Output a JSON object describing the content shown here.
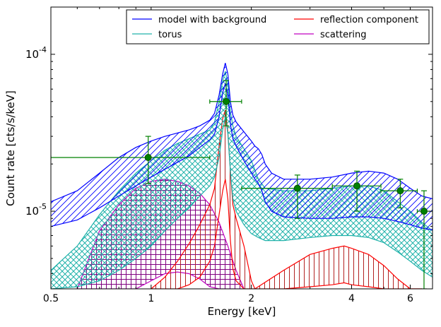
{
  "chart_data": {
    "type": "line",
    "title": "",
    "xlabel": "Energy [keV]",
    "ylabel": "Count rate [cts/s/keV]",
    "x_scale": "log",
    "y_scale": "log",
    "xlim": [
      0.5,
      7.0
    ],
    "ylim": [
      3.2e-06,
      0.0002
    ],
    "x_ticks": [
      {
        "value": 0.5,
        "label": "0.5"
      },
      {
        "value": 1,
        "label": "1"
      },
      {
        "value": 2,
        "label": "2"
      },
      {
        "value": 4,
        "label": "4"
      },
      {
        "value": 6,
        "label": "6"
      }
    ],
    "y_ticks": [
      {
        "value": 1e-05,
        "base": "10",
        "exp": "-5"
      },
      {
        "value": 0.0001,
        "base": "10",
        "exp": "-4"
      }
    ],
    "grid": false,
    "legend_position": "top-right",
    "legend": [
      {
        "label": "model with background",
        "color": "#0000ff"
      },
      {
        "label": "reflection component",
        "color": "#ff0000"
      },
      {
        "label": "torus",
        "color": "#20b2aa"
      },
      {
        "label": "scattering",
        "color": "#c000c0"
      }
    ],
    "series": [
      {
        "name": "model with background",
        "color": "#0000ff",
        "band": {
          "x": [
            0.5,
            0.6,
            0.7,
            0.8,
            0.9,
            1.0,
            1.1,
            1.2,
            1.3,
            1.4,
            1.5,
            1.55,
            1.6,
            1.64,
            1.67,
            1.7,
            1.73,
            1.76,
            1.8,
            1.9,
            2.0,
            2.05,
            2.1,
            2.15,
            2.2,
            2.3,
            2.5,
            3.0,
            3.5,
            4.0,
            4.5,
            5.0,
            5.5,
            6.0,
            6.5,
            7.0
          ],
          "upper": [
            1.15e-05,
            1.35e-05,
            1.75e-05,
            2.2e-05,
            2.55e-05,
            2.8e-05,
            3e-05,
            3.15e-05,
            3.3e-05,
            3.5e-05,
            3.8e-05,
            4.2e-05,
            5.5e-05,
            7.5e-05,
            8.8e-05,
            7.5e-05,
            5e-05,
            4.1e-05,
            3.7e-05,
            3.2e-05,
            2.8e-05,
            2.6e-05,
            2.5e-05,
            2.3e-05,
            2e-05,
            1.75e-05,
            1.6e-05,
            1.6e-05,
            1.65e-05,
            1.75e-05,
            1.8e-05,
            1.75e-05,
            1.6e-05,
            1.4e-05,
            1.25e-05,
            1.2e-05
          ],
          "lower": [
            8e-06,
            8.8e-06,
            1.05e-05,
            1.25e-05,
            1.45e-05,
            1.65e-05,
            1.85e-05,
            2.05e-05,
            2.25e-05,
            2.55e-05,
            2.85e-05,
            3.1e-05,
            4e-05,
            5.7e-05,
            6.5e-05,
            5.5e-05,
            3.6e-05,
            2.9e-05,
            2.6e-05,
            2.1e-05,
            1.75e-05,
            1.6e-05,
            1.5e-05,
            1.35e-05,
            1.15e-05,
            1e-05,
            9.2e-06,
            9e-06,
            9e-06,
            9.2e-06,
            9.2e-06,
            9e-06,
            8.6e-06,
            8.2e-06,
            7.8e-06,
            7.6e-06
          ]
        }
      },
      {
        "name": "torus",
        "color": "#20b2aa",
        "band": {
          "x": [
            0.5,
            0.6,
            0.7,
            0.8,
            0.9,
            1.0,
            1.1,
            1.2,
            1.3,
            1.4,
            1.5,
            1.55,
            1.6,
            1.64,
            1.67,
            1.7,
            1.73,
            1.76,
            1.8,
            1.9,
            2.0,
            2.1,
            2.2,
            2.5,
            3.0,
            3.5,
            4.0,
            4.5,
            5.0,
            5.5,
            6.0,
            6.5,
            7.0
          ],
          "upper": [
            4.2e-06,
            6e-06,
            9.5e-06,
            1.35e-05,
            1.75e-05,
            2.1e-05,
            2.45e-05,
            2.7e-05,
            2.9e-05,
            3.1e-05,
            3.3e-05,
            3.7e-05,
            5e-05,
            6.8e-05,
            7.8e-05,
            6.5e-05,
            4.3e-05,
            3.5e-05,
            3e-05,
            2.5e-05,
            2.1e-05,
            1.6e-05,
            1.4e-05,
            1.35e-05,
            1.35e-05,
            1.4e-05,
            1.45e-05,
            1.45e-05,
            1.35e-05,
            1.15e-05,
            1e-05,
            8.5e-06,
            7.5e-06
          ],
          "lower": [
            3.2e-06,
            3.3e-06,
            3.6e-06,
            4.2e-06,
            5e-06,
            6e-06,
            7.5e-06,
            9e-06,
            1.05e-05,
            1.25e-05,
            1.45e-05,
            1.65e-05,
            2.2e-05,
            3.3e-05,
            4e-05,
            3.1e-05,
            1.8e-05,
            1.2e-05,
            1e-05,
            8.2e-06,
            7.2e-06,
            6.8e-06,
            6.5e-06,
            6.5e-06,
            6.8e-06,
            7e-06,
            7e-06,
            6.8e-06,
            6.3e-06,
            5.5e-06,
            4.8e-06,
            4.2e-06,
            3.8e-06
          ]
        }
      },
      {
        "name": "reflection component",
        "color": "#ff0000",
        "band": {
          "x": [
            1.0,
            1.1,
            1.2,
            1.3,
            1.4,
            1.5,
            1.55,
            1.6,
            1.64,
            1.67,
            1.7,
            1.73,
            1.76,
            1.8,
            1.9,
            2.0,
            2.05,
            2.5,
            3.0,
            3.5,
            3.8,
            4.0,
            4.5,
            5.0,
            5.5,
            6.0,
            6.5
          ],
          "upper": [
            3.2e-06,
            3.8e-06,
            4.8e-06,
            6.2e-06,
            8.2e-06,
            1.1e-05,
            1.4e-05,
            2.6e-05,
            3.9e-05,
            4.4e-05,
            3.2e-05,
            1.8e-05,
            1.1e-05,
            9e-06,
            6e-06,
            3.6e-06,
            3.2e-06,
            4.2e-06,
            5.3e-06,
            5.8e-06,
            6e-06,
            5.8e-06,
            5.3e-06,
            4.5e-06,
            3.7e-06,
            3.2e-06,
            3.2e-06
          ],
          "lower": [
            3.2e-06,
            3.2e-06,
            3.2e-06,
            3.4e-06,
            3.8e-06,
            4.8e-06,
            6e-06,
            9.5e-06,
            1.35e-05,
            1.6e-05,
            1.2e-05,
            6.5e-06,
            4.3e-06,
            3.6e-06,
            3.2e-06,
            3.2e-06,
            3.2e-06,
            3.2e-06,
            3.3e-06,
            3.4e-06,
            3.5e-06,
            3.4e-06,
            3.3e-06,
            3.2e-06,
            3.2e-06,
            3.2e-06,
            3.2e-06
          ]
        }
      },
      {
        "name": "scattering",
        "color": "#c000c0",
        "band": {
          "x": [
            0.6,
            0.65,
            0.7,
            0.8,
            0.9,
            1.0,
            1.1,
            1.2,
            1.3,
            1.4,
            1.5,
            1.6,
            1.7,
            1.8,
            1.9
          ],
          "upper": [
            3.2e-06,
            5e-06,
            7.5e-06,
            1.1e-05,
            1.4e-05,
            1.55e-05,
            1.6e-05,
            1.55e-05,
            1.45e-05,
            1.3e-05,
            1.1e-05,
            8.5e-06,
            6e-06,
            4.2e-06,
            3.2e-06
          ],
          "lower": [
            3.2e-06,
            3.2e-06,
            3.2e-06,
            3.2e-06,
            3.2e-06,
            3.6e-06,
            4e-06,
            4.1e-06,
            4e-06,
            3.7e-06,
            3.3e-06,
            3.2e-06,
            3.2e-06,
            3.2e-06,
            3.2e-06
          ]
        }
      }
    ],
    "data_points": [
      {
        "x": 0.98,
        "y": 2.2e-05,
        "xlo": 0.5,
        "xhi": 1.5,
        "ylo": 1.5e-05,
        "yhi": 3e-05
      },
      {
        "x": 1.68,
        "y": 5e-05,
        "xlo": 1.5,
        "xhi": 1.87,
        "ylo": 3.5e-05,
        "yhi": 6.8e-05
      },
      {
        "x": 2.75,
        "y": 1.4e-05,
        "xlo": 1.87,
        "xhi": 3.5,
        "ylo": 9e-06,
        "yhi": 1.7e-05
      },
      {
        "x": 4.15,
        "y": 1.45e-05,
        "xlo": 3.5,
        "xhi": 4.9,
        "ylo": 1e-05,
        "yhi": 1.8e-05
      },
      {
        "x": 5.6,
        "y": 1.35e-05,
        "xlo": 4.9,
        "xhi": 6.3,
        "ylo": 1.05e-05,
        "yhi": 1.6e-05
      },
      {
        "x": 6.6,
        "y": 1e-05,
        "xlo": 6.3,
        "xhi": 7.0,
        "ylo": 3.2e-06,
        "yhi": 1.35e-05
      }
    ],
    "data_point_color": "#008000"
  }
}
